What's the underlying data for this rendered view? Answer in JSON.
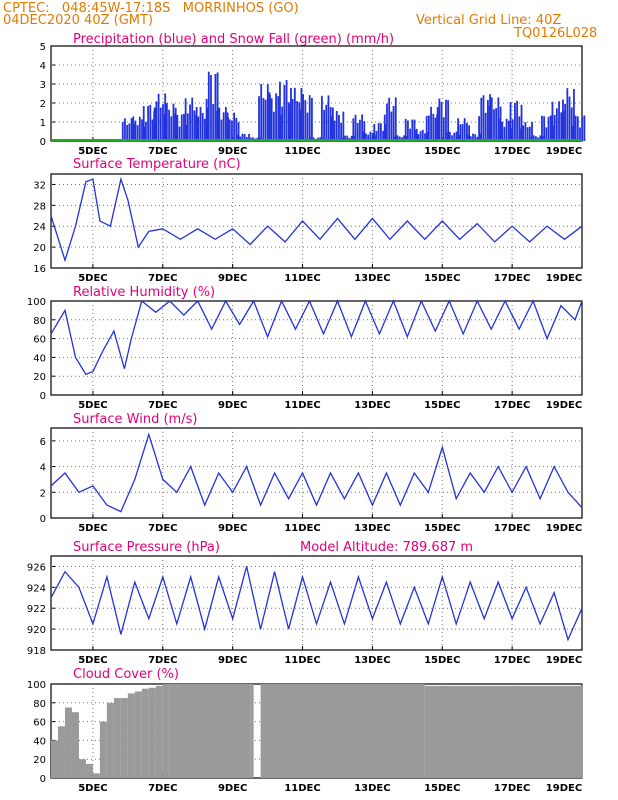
{
  "header": {
    "left_line1": "CPTEC:   048:45W-17:18S   MORRINHOS (GO)",
    "left_line2": "04DEC2020 40Z (GMT)",
    "right_line1": "Vertical Grid Line: 40Z",
    "right_line2": "TQ0126L028"
  },
  "colors": {
    "header": "#e07b00",
    "title": "#e0007a",
    "series": "#2233dd",
    "cloud": "#9a9a9a",
    "snow": "#22aa22"
  },
  "x_ticks": [
    "5DEC",
    "7DEC",
    "9DEC",
    "11DEC",
    "13DEC",
    "15DEC",
    "17DEC",
    "19DEC"
  ],
  "chart_data": [
    {
      "type": "bar",
      "title": "Precipitation (blue) and Snow Fall (green) (mm/h)",
      "ylim": [
        0,
        5
      ],
      "yticks": [
        "0",
        "1",
        "2",
        "3",
        "4",
        "5"
      ],
      "series": [
        {
          "name": "precipitation",
          "x_days": [
            6.0,
            6.3,
            6.6,
            6.9,
            7.2,
            7.5,
            7.8,
            8.1,
            8.4,
            8.7,
            9.0,
            9.3,
            9.6,
            9.9,
            10.2,
            10.5,
            10.8,
            11.1,
            11.4,
            11.7,
            12.0,
            12.3,
            12.6,
            12.9,
            13.2,
            13.5,
            13.8,
            14.1,
            14.4,
            14.7,
            15.0,
            15.3,
            15.6,
            15.9,
            16.2,
            16.5,
            16.8,
            17.1,
            17.4,
            17.7,
            18.0,
            18.3,
            18.6,
            18.9
          ],
          "values": [
            1.2,
            1.3,
            2.0,
            2.5,
            2.0,
            1.5,
            2.3,
            1.8,
            3.8,
            1.8,
            1.5,
            0.4,
            0.2,
            3.0,
            2.6,
            3.3,
            2.8,
            2.5,
            0.2,
            2.4,
            1.6,
            0.3,
            1.4,
            0.5,
            1.0,
            2.3,
            0.3,
            1.2,
            0.6,
            1.8,
            2.3,
            0.5,
            1.2,
            0.4,
            2.5,
            2.3,
            1.2,
            2.2,
            1.0,
            0.3,
            1.4,
            2.1,
            2.8,
            1.4
          ]
        },
        {
          "name": "snow fall",
          "values": [
            0
          ]
        }
      ]
    },
    {
      "type": "line",
      "title": "Surface Temperature (nC)",
      "ylim": [
        16,
        34
      ],
      "yticks": [
        "16",
        "20",
        "24",
        "28",
        "32"
      ],
      "x_days": [
        3.8,
        4.2,
        4.5,
        4.8,
        5.0,
        5.2,
        5.5,
        5.8,
        6.0,
        6.3,
        6.6,
        7.0,
        7.5,
        8.0,
        8.5,
        9.0,
        9.5,
        10.0,
        10.5,
        11.0,
        11.5,
        12.0,
        12.5,
        13.0,
        13.5,
        14.0,
        14.5,
        15.0,
        15.5,
        16.0,
        16.5,
        17.0,
        17.5,
        18.0,
        18.5,
        19.0
      ],
      "values": [
        26,
        17.5,
        24,
        32.5,
        33,
        25,
        24,
        33,
        29,
        20,
        23,
        23.5,
        21.5,
        23.5,
        21.5,
        23.5,
        20.5,
        24,
        21,
        25,
        21.5,
        25.5,
        21.5,
        25.5,
        21.5,
        25,
        21.5,
        25,
        21.5,
        24.5,
        21,
        24,
        21,
        24,
        21.5,
        24
      ]
    },
    {
      "type": "line",
      "title": "Relative Humidity (%)",
      "ylim": [
        0,
        100
      ],
      "yticks": [
        "0",
        "20",
        "40",
        "60",
        "80",
        "100"
      ],
      "x_days": [
        3.8,
        4.2,
        4.5,
        4.8,
        5.0,
        5.3,
        5.6,
        5.9,
        6.1,
        6.4,
        6.8,
        7.2,
        7.6,
        8.0,
        8.4,
        8.8,
        9.2,
        9.6,
        10.0,
        10.4,
        10.8,
        11.2,
        11.6,
        12.0,
        12.4,
        12.8,
        13.2,
        13.6,
        14.0,
        14.4,
        14.8,
        15.2,
        15.6,
        16.0,
        16.4,
        16.8,
        17.2,
        17.6,
        18.0,
        18.4,
        18.8,
        19.0
      ],
      "values": [
        65,
        90,
        40,
        22,
        25,
        48,
        68,
        28,
        60,
        100,
        88,
        100,
        85,
        100,
        70,
        100,
        75,
        100,
        62,
        100,
        70,
        100,
        65,
        100,
        62,
        100,
        65,
        100,
        62,
        100,
        68,
        100,
        65,
        100,
        70,
        100,
        70,
        100,
        60,
        95,
        80,
        100
      ]
    },
    {
      "type": "line",
      "title": "Surface Wind (m/s)",
      "ylim": [
        0,
        7
      ],
      "yticks": [
        "0",
        "2",
        "4",
        "6"
      ],
      "x_days": [
        3.8,
        4.2,
        4.6,
        5.0,
        5.4,
        5.8,
        6.2,
        6.6,
        7.0,
        7.4,
        7.8,
        8.2,
        8.6,
        9.0,
        9.4,
        9.8,
        10.2,
        10.6,
        11.0,
        11.4,
        11.8,
        12.2,
        12.6,
        13.0,
        13.4,
        13.8,
        14.2,
        14.6,
        15.0,
        15.4,
        15.8,
        16.2,
        16.6,
        17.0,
        17.4,
        17.8,
        18.2,
        18.6,
        19.0
      ],
      "values": [
        2.5,
        3.5,
        2,
        2.5,
        1,
        0.5,
        3,
        6.5,
        3,
        2,
        4,
        1,
        3.5,
        2,
        4,
        1,
        3.5,
        1.5,
        3.5,
        1,
        3.5,
        1.5,
        3.5,
        1,
        3.5,
        1,
        3.5,
        2,
        5.5,
        1.5,
        3.5,
        2,
        4,
        2,
        4,
        1.5,
        4,
        2,
        0.8
      ]
    },
    {
      "type": "line",
      "title": "Surface Pressure (hPa)",
      "annotation": "Model Altitude: 789.687 m",
      "ylim": [
        918,
        927
      ],
      "yticks": [
        "918",
        "920",
        "922",
        "924",
        "926"
      ],
      "x_days": [
        3.8,
        4.2,
        4.6,
        5.0,
        5.4,
        5.8,
        6.2,
        6.6,
        7.0,
        7.4,
        7.8,
        8.2,
        8.6,
        9.0,
        9.4,
        9.8,
        10.2,
        10.6,
        11.0,
        11.4,
        11.8,
        12.2,
        12.6,
        13.0,
        13.4,
        13.8,
        14.2,
        14.6,
        15.0,
        15.4,
        15.8,
        16.2,
        16.6,
        17.0,
        17.4,
        17.8,
        18.2,
        18.6,
        19.0
      ],
      "values": [
        923,
        925.5,
        924,
        920.5,
        925,
        919.5,
        924.5,
        921,
        925,
        920.5,
        925,
        920,
        925,
        921,
        926,
        920,
        925.5,
        920,
        925,
        920.5,
        924.5,
        920.5,
        925,
        921,
        924.5,
        920.5,
        924,
        920.5,
        925,
        920.5,
        924.5,
        921,
        924.5,
        921,
        924,
        920.5,
        923.5,
        919,
        922
      ]
    },
    {
      "type": "bar",
      "title": "Cloud Cover (%)",
      "ylim": [
        0,
        100
      ],
      "yticks": [
        "0",
        "20",
        "40",
        "60",
        "80",
        "100"
      ],
      "x_days": [
        3.8,
        4.0,
        4.2,
        4.4,
        4.6,
        4.8,
        5.0,
        5.2,
        5.4,
        5.6,
        5.8,
        6.0,
        6.2,
        6.4,
        6.6,
        6.8,
        7.0,
        7.2,
        9.5,
        9.6,
        9.8,
        12.0,
        14.5,
        19.0
      ],
      "values": [
        40,
        55,
        75,
        70,
        20,
        15,
        5,
        60,
        80,
        85,
        85,
        90,
        92,
        95,
        96,
        98,
        100,
        100,
        100,
        0,
        100,
        100,
        98,
        100
      ]
    }
  ]
}
